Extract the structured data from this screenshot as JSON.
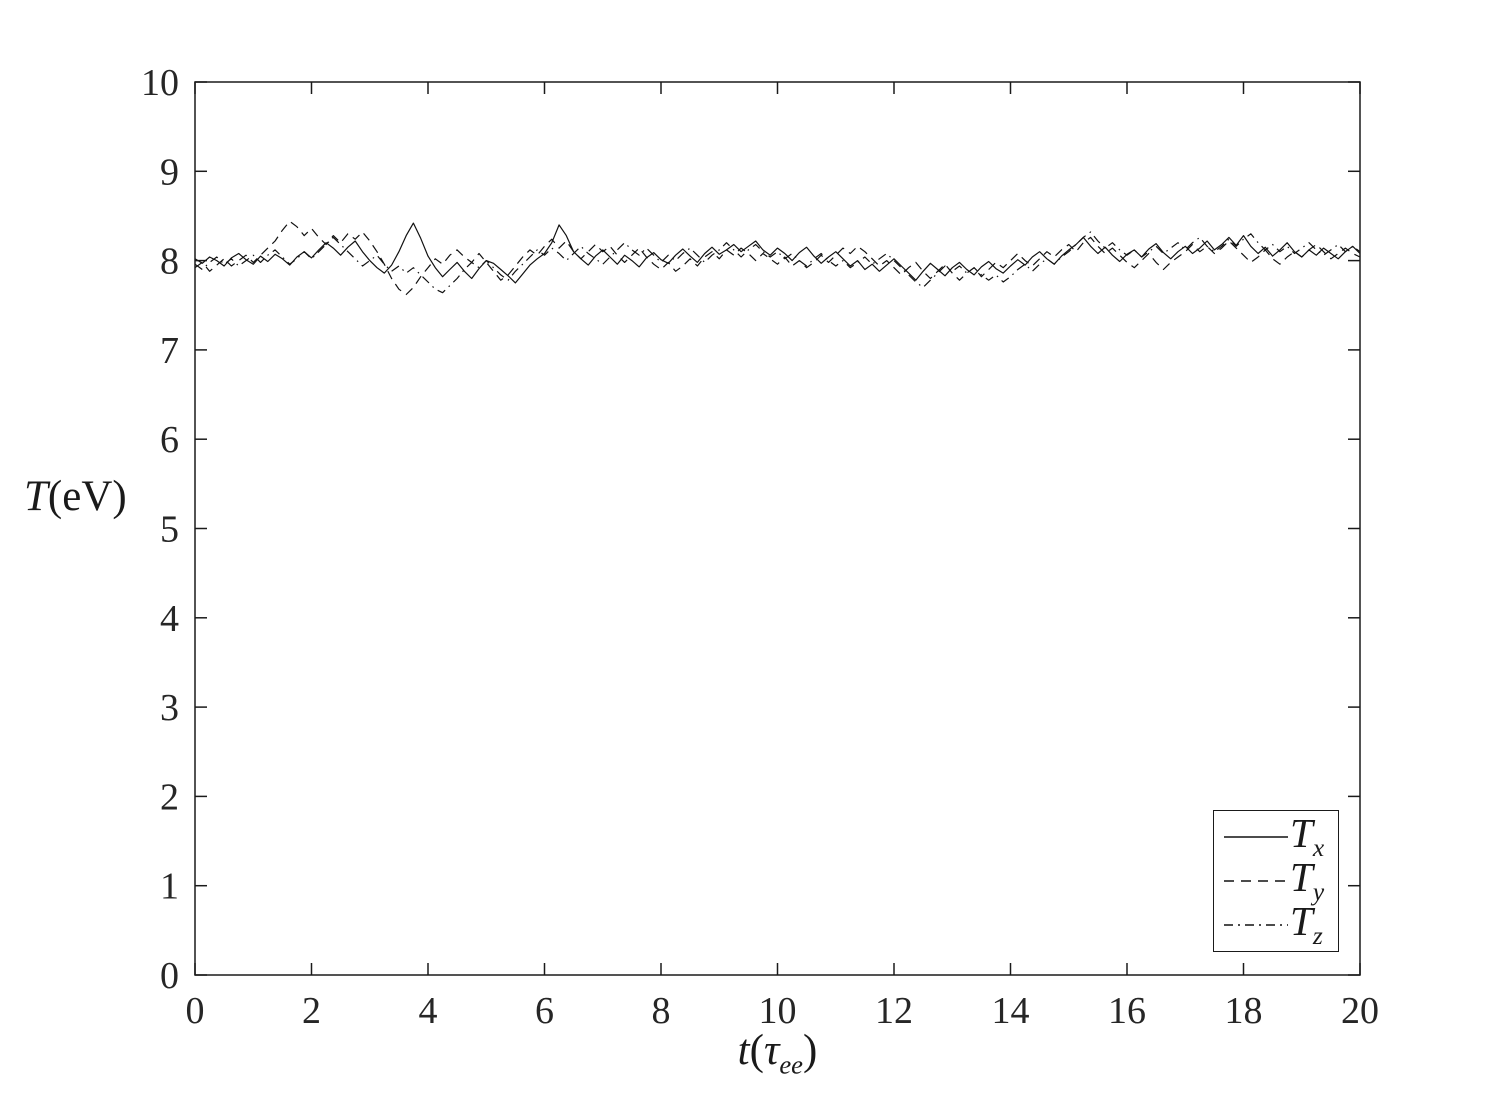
{
  "colors": {
    "background": "#ffffff",
    "line": "#111111",
    "text": "#262626",
    "axis": "#1a1a1a"
  },
  "chart_data": {
    "type": "line",
    "title": "",
    "xlabel_parts": {
      "var": "t",
      "open": "(",
      "tau": "τ",
      "tau_sub": "ee",
      "close": ")"
    },
    "ylabel_parts": {
      "var": "T",
      "unit": "(eV)"
    },
    "xlim": [
      0,
      20
    ],
    "ylim": [
      0,
      10
    ],
    "xticks": [
      0,
      2,
      4,
      6,
      8,
      10,
      12,
      14,
      16,
      18,
      20
    ],
    "yticks": [
      0,
      1,
      2,
      3,
      4,
      5,
      6,
      7,
      8,
      9,
      10
    ],
    "grid": false,
    "legend_position": "lower right",
    "t": {
      "start": 0,
      "end": 20,
      "step": 0.125
    },
    "series": [
      {
        "name": "Tx",
        "label_main": "T",
        "label_sub": "x",
        "style": "solid",
        "mean": 8.0,
        "values": [
          8.02,
          7.97,
          8.04,
          8.0,
          7.94,
          8.03,
          8.08,
          8.01,
          7.96,
          8.05,
          7.99,
          8.07,
          8.02,
          7.95,
          8.04,
          8.1,
          8.03,
          8.12,
          8.2,
          8.14,
          8.06,
          8.15,
          8.22,
          8.1,
          8.0,
          7.92,
          7.86,
          7.95,
          8.1,
          8.28,
          8.42,
          8.25,
          8.05,
          7.92,
          7.82,
          7.9,
          7.98,
          7.88,
          7.8,
          7.91,
          8.0,
          7.97,
          7.9,
          7.83,
          7.75,
          7.85,
          7.95,
          8.02,
          8.08,
          8.2,
          8.4,
          8.28,
          8.1,
          8.02,
          7.95,
          8.05,
          8.12,
          8.04,
          7.96,
          8.06,
          8.0,
          7.93,
          8.03,
          8.09,
          8.01,
          7.97,
          8.06,
          8.13,
          8.05,
          7.98,
          8.08,
          8.15,
          8.07,
          8.12,
          8.18,
          8.1,
          8.16,
          8.22,
          8.12,
          8.06,
          8.14,
          8.08,
          8.0,
          8.09,
          8.15,
          8.05,
          7.97,
          8.04,
          8.1,
          8.02,
          7.94,
          8.0,
          7.9,
          7.96,
          7.88,
          7.95,
          8.02,
          7.94,
          7.86,
          7.78,
          7.88,
          7.97,
          7.9,
          7.83,
          7.92,
          7.98,
          7.9,
          7.84,
          7.93,
          7.99,
          7.91,
          7.86,
          7.94,
          8.01,
          7.95,
          8.04,
          8.1,
          8.02,
          7.96,
          8.05,
          8.12,
          8.18,
          8.26,
          8.16,
          8.08,
          8.15,
          8.06,
          7.99,
          8.07,
          8.12,
          8.04,
          8.13,
          8.19,
          8.09,
          8.02,
          8.1,
          8.16,
          8.08,
          8.14,
          8.22,
          8.12,
          8.18,
          8.26,
          8.17,
          8.28,
          8.16,
          8.08,
          8.15,
          8.05,
          8.12,
          8.2,
          8.1,
          8.04,
          8.12,
          8.06,
          8.14,
          8.08,
          8.02,
          8.1,
          8.16,
          8.08
        ]
      },
      {
        "name": "Ty",
        "label_main": "T",
        "label_sub": "y",
        "style": "dashed",
        "mean": 8.0,
        "values": [
          7.92,
          7.98,
          7.88,
          7.95,
          8.02,
          7.94,
          8.0,
          8.06,
          7.98,
          8.06,
          8.14,
          8.22,
          8.34,
          8.44,
          8.38,
          8.28,
          8.36,
          8.26,
          8.18,
          8.28,
          8.2,
          8.3,
          8.24,
          8.32,
          8.22,
          8.1,
          7.96,
          7.8,
          7.68,
          7.62,
          7.7,
          7.82,
          7.92,
          8.02,
          7.96,
          8.06,
          8.12,
          8.04,
          7.98,
          8.08,
          7.98,
          7.88,
          7.78,
          7.84,
          7.94,
          8.04,
          8.12,
          8.06,
          8.16,
          8.24,
          8.14,
          8.22,
          8.1,
          8.02,
          8.1,
          8.18,
          8.1,
          8.16,
          8.06,
          7.98,
          8.06,
          8.14,
          8.04,
          7.96,
          7.9,
          7.98,
          7.88,
          7.94,
          8.02,
          7.94,
          8.04,
          8.1,
          8.02,
          8.12,
          8.06,
          8.14,
          8.08,
          8.0,
          8.08,
          8.02,
          7.96,
          8.04,
          7.94,
          8.0,
          7.92,
          7.98,
          8.06,
          7.98,
          8.06,
          8.14,
          8.08,
          8.16,
          8.1,
          8.02,
          7.94,
          8.0,
          7.92,
          7.84,
          7.92,
          7.98,
          7.88,
          7.8,
          7.88,
          7.96,
          7.86,
          7.78,
          7.86,
          7.92,
          7.82,
          7.9,
          7.98,
          7.92,
          8.0,
          8.08,
          8.0,
          7.94,
          8.02,
          8.1,
          8.04,
          8.12,
          8.18,
          8.1,
          8.2,
          8.26,
          8.16,
          8.08,
          8.14,
          8.06,
          7.98,
          7.92,
          8.0,
          8.08,
          7.98,
          7.9,
          7.98,
          8.04,
          8.1,
          8.18,
          8.1,
          8.16,
          8.08,
          8.14,
          8.22,
          8.14,
          8.06,
          7.98,
          8.04,
          8.12,
          8.02,
          7.96,
          8.04,
          8.1,
          8.04,
          8.12,
          8.18,
          8.1,
          8.02,
          8.08,
          8.14,
          8.08,
          8.04
        ]
      },
      {
        "name": "Tz",
        "label_main": "T",
        "label_sub": "z",
        "style": "dashdot",
        "mean": 8.0,
        "values": [
          7.96,
          7.9,
          7.98,
          8.04,
          7.96,
          8.02,
          7.94,
          8.0,
          8.06,
          7.98,
          8.06,
          8.12,
          8.04,
          7.96,
          8.02,
          8.1,
          8.02,
          8.1,
          8.18,
          8.26,
          8.18,
          8.1,
          8.02,
          7.94,
          8.0,
          8.06,
          7.96,
          7.88,
          7.94,
          7.86,
          7.92,
          7.84,
          7.76,
          7.68,
          7.64,
          7.72,
          7.8,
          7.9,
          7.98,
          7.92,
          8.0,
          7.92,
          7.84,
          7.78,
          7.88,
          7.96,
          8.04,
          8.12,
          8.06,
          8.14,
          8.08,
          8.0,
          8.08,
          8.16,
          8.08,
          8.02,
          7.96,
          8.04,
          8.12,
          8.2,
          8.12,
          8.06,
          8.14,
          8.06,
          7.98,
          8.06,
          8.0,
          8.08,
          8.14,
          8.06,
          7.98,
          8.06,
          8.12,
          8.2,
          8.12,
          8.04,
          8.12,
          8.18,
          8.1,
          8.04,
          8.1,
          8.02,
          8.08,
          8.0,
          7.94,
          8.02,
          8.08,
          8.0,
          7.94,
          8.0,
          7.92,
          7.98,
          8.04,
          7.96,
          8.02,
          8.08,
          8.0,
          7.92,
          7.84,
          7.76,
          7.7,
          7.78,
          7.86,
          7.94,
          7.88,
          7.94,
          7.86,
          7.92,
          7.84,
          7.78,
          7.84,
          7.76,
          7.82,
          7.9,
          7.96,
          7.88,
          7.96,
          8.02,
          7.96,
          8.04,
          8.1,
          8.18,
          8.26,
          8.32,
          8.22,
          8.14,
          8.2,
          8.12,
          8.06,
          8.12,
          8.04,
          8.1,
          8.16,
          8.08,
          8.14,
          8.2,
          8.12,
          8.2,
          8.26,
          8.16,
          8.1,
          8.16,
          8.24,
          8.16,
          8.24,
          8.3,
          8.2,
          8.12,
          8.18,
          8.1,
          8.16,
          8.08,
          8.14,
          8.2,
          8.12,
          8.06,
          8.12,
          8.18,
          8.1,
          8.16,
          8.1
        ]
      }
    ]
  }
}
